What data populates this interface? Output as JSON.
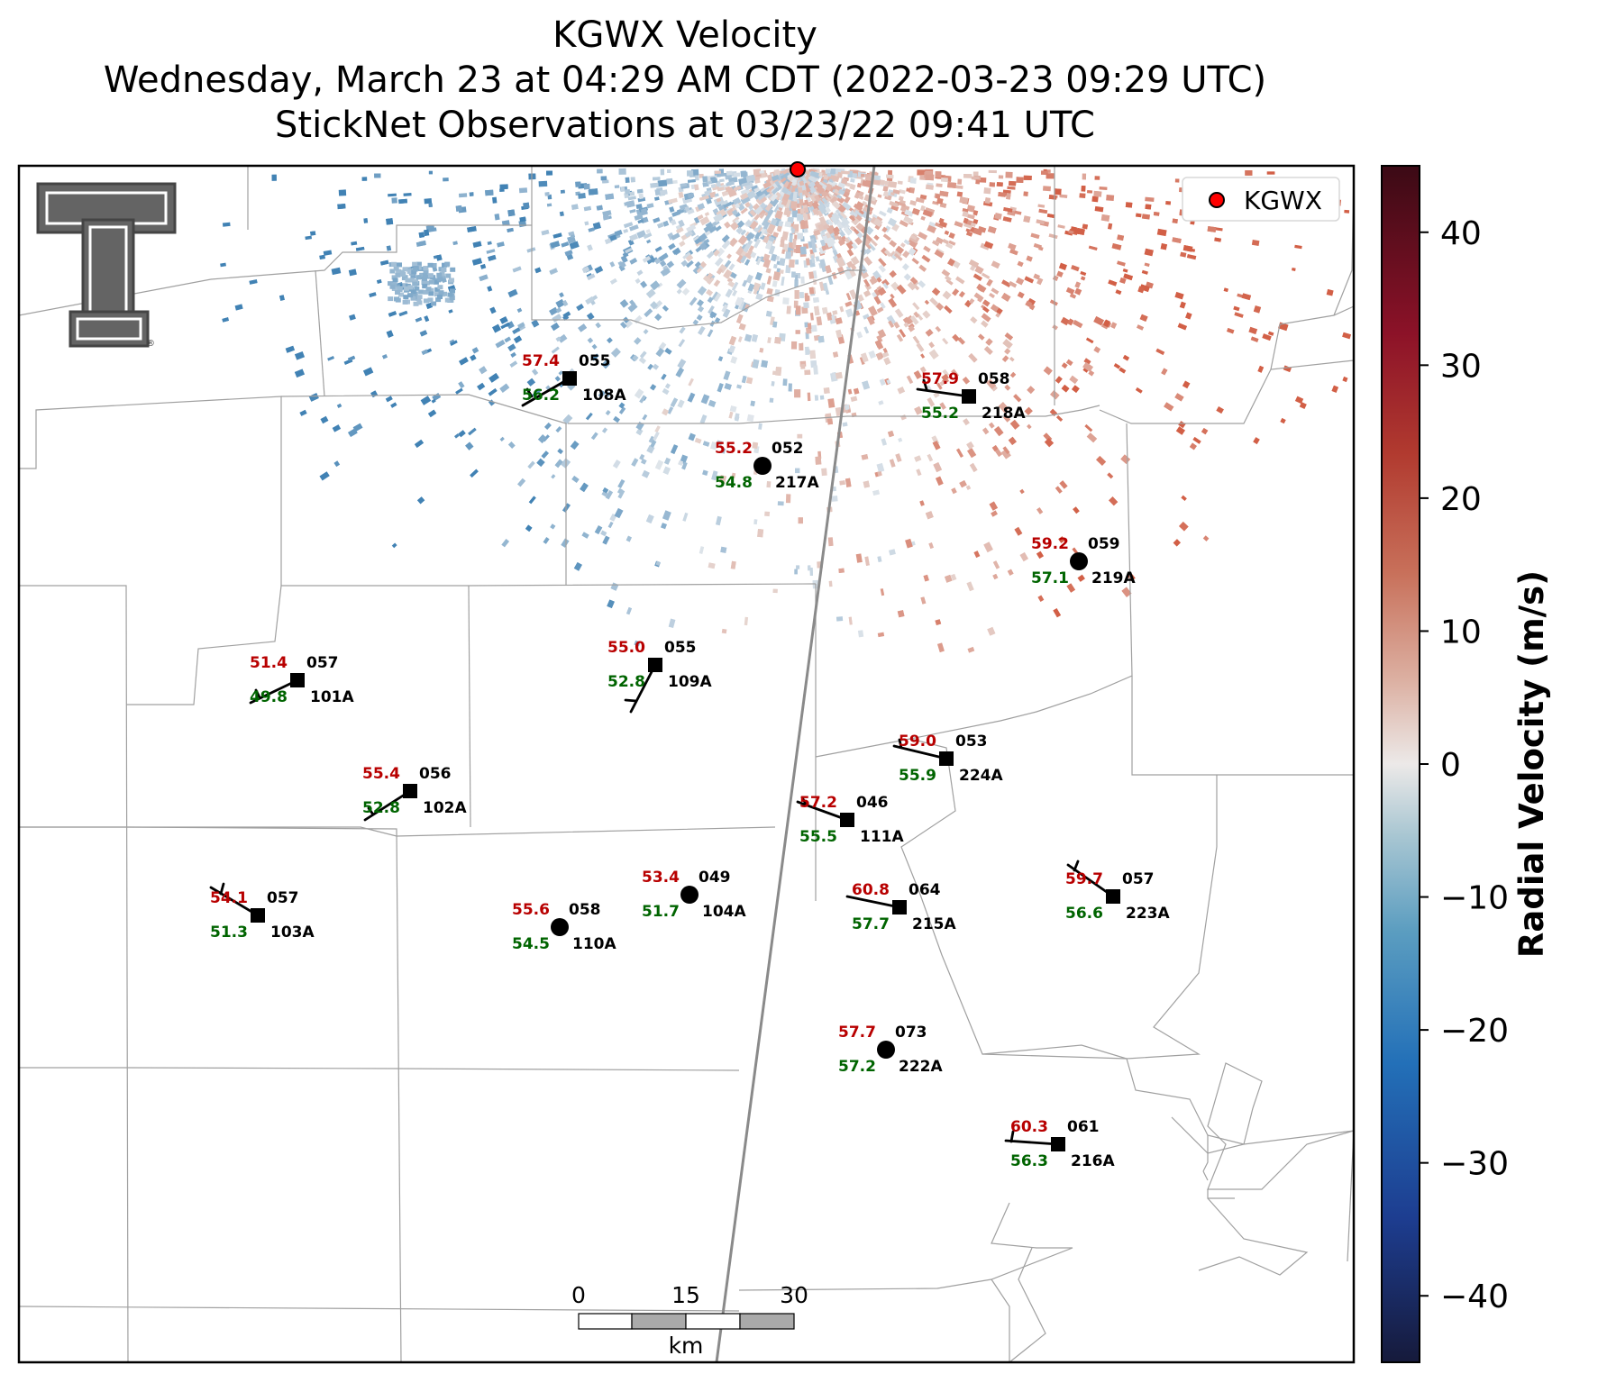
{
  "title": {
    "line1": "KGWX Velocity",
    "line2": "Wednesday, March 23 at 04:29 AM CDT (2022-03-23 09:29 UTC)",
    "line3": "StickNet Observations at 03/23/22 09:41 UTC"
  },
  "legend": {
    "radar_label": "KGWX"
  },
  "colorbar": {
    "label": "Radial Velocity (m/s)",
    "ticks": [
      "40",
      "30",
      "20",
      "10",
      "0",
      "−10",
      "−20",
      "−30",
      "−40"
    ],
    "tick_values": [
      40,
      30,
      20,
      10,
      0,
      -10,
      -20,
      -30,
      -40
    ],
    "range": [
      -45,
      45
    ]
  },
  "scalebar": {
    "ticks": [
      "0",
      "15",
      "30"
    ],
    "unit": "km"
  },
  "logo": {
    "name": "Texas Tech Double T",
    "mark": "®"
  },
  "colors": {
    "temperature": "#b80000",
    "dewpoint": "#006400",
    "id_text": "#000000",
    "radar_marker": "#ff0000",
    "positive_velocity": "#c8553d",
    "negative_velocity": "#3f86b4",
    "county_lines": "#a0a0a0",
    "radar_beam_line": "#808080"
  },
  "stations": [
    {
      "id": "108A",
      "temp": "57.4",
      "dew": "56.2",
      "pres": "055",
      "type": "square"
    },
    {
      "id": "218A",
      "temp": "57.9",
      "dew": "55.2",
      "pres": "058",
      "type": "square"
    },
    {
      "id": "217A",
      "temp": "55.2",
      "dew": "54.8",
      "pres": "052",
      "type": "circle"
    },
    {
      "id": "219A",
      "temp": "59.2",
      "dew": "57.1",
      "pres": "059",
      "type": "circle"
    },
    {
      "id": "101A",
      "temp": "51.4",
      "dew": "49.8",
      "pres": "057",
      "type": "square"
    },
    {
      "id": "109A",
      "temp": "55.0",
      "dew": "52.8",
      "pres": "055",
      "type": "square"
    },
    {
      "id": "224A",
      "temp": "59.0",
      "dew": "55.9",
      "pres": "053",
      "type": "square"
    },
    {
      "id": "102A",
      "temp": "55.4",
      "dew": "52.8",
      "pres": "056",
      "type": "square"
    },
    {
      "id": "111A",
      "temp": "57.2",
      "dew": "55.5",
      "pres": "046",
      "type": "square"
    },
    {
      "id": "103A",
      "temp": "54.1",
      "dew": "51.3",
      "pres": "057",
      "type": "square"
    },
    {
      "id": "104A",
      "temp": "53.4",
      "dew": "51.7",
      "pres": "049",
      "type": "circle"
    },
    {
      "id": "110A",
      "temp": "55.6",
      "dew": "54.5",
      "pres": "058",
      "type": "circle"
    },
    {
      "id": "215A",
      "temp": "60.8",
      "dew": "57.7",
      "pres": "064",
      "type": "square"
    },
    {
      "id": "223A",
      "temp": "59.7",
      "dew": "56.6",
      "pres": "057",
      "type": "square"
    },
    {
      "id": "222A",
      "temp": "57.7",
      "dew": "57.2",
      "pres": "073",
      "type": "circle"
    },
    {
      "id": "216A",
      "temp": "60.3",
      "dew": "56.3",
      "pres": "061",
      "type": "square"
    }
  ]
}
